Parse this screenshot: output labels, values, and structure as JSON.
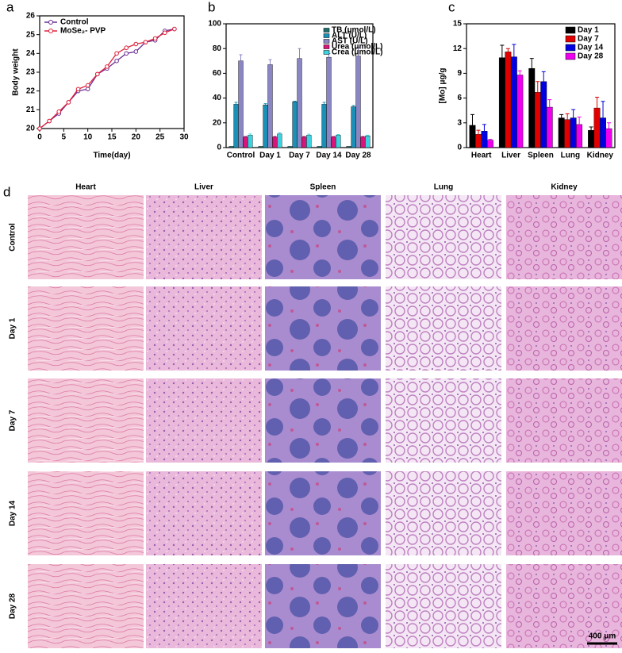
{
  "chart_data": [
    {
      "type": "line",
      "panel_label": "a",
      "x_label": "Time(day)",
      "y_label": "Body weight",
      "x": [
        0,
        2,
        4,
        6,
        8,
        10,
        12,
        14,
        16,
        18,
        20,
        22,
        24,
        26,
        28
      ],
      "xlim": [
        0,
        30
      ],
      "xticks": [
        0,
        5,
        10,
        15,
        20,
        25,
        30
      ],
      "ylim": [
        20,
        26
      ],
      "yticks": [
        20,
        21,
        22,
        23,
        24,
        25,
        26
      ],
      "legend": "upper left",
      "series": [
        {
          "name": "Control",
          "color": "#6a2c91",
          "values": [
            20.0,
            20.4,
            20.8,
            21.4,
            22.0,
            22.1,
            22.9,
            23.2,
            23.6,
            24.0,
            24.1,
            24.6,
            24.7,
            25.2,
            25.3
          ]
        },
        {
          "name": "MoSe₂- PVP",
          "color": "#e0203a",
          "values": [
            20.0,
            20.4,
            20.9,
            21.4,
            22.1,
            22.3,
            22.9,
            23.3,
            24.0,
            24.3,
            24.5,
            24.6,
            24.8,
            25.1,
            25.3
          ]
        }
      ]
    },
    {
      "type": "bar",
      "panel_label": "b",
      "categories": [
        "Control",
        "Day 1",
        "Day 7",
        "Day 14",
        "Day 28"
      ],
      "ylim": [
        0,
        100
      ],
      "yticks": [
        0,
        20,
        40,
        60,
        80,
        100
      ],
      "legend": "upper right",
      "series": [
        {
          "name": "TB (μmol/L)",
          "color": "#1f6e6e",
          "values": [
            1,
            1,
            1,
            1,
            1
          ]
        },
        {
          "name": "ALT (U/L)",
          "color": "#1b8fb5",
          "values": [
            35,
            34.5,
            37,
            35,
            33
          ],
          "errors": [
            1.5,
            1,
            0.5,
            1.5,
            1
          ]
        },
        {
          "name": "AST (U/L)",
          "color": "#8a86c4",
          "values": [
            70,
            67,
            72,
            73,
            74
          ],
          "errors": [
            5,
            4,
            8,
            3,
            7
          ]
        },
        {
          "name": "Urea (μmol/L)",
          "color": "#d8157a",
          "values": [
            8.5,
            8.5,
            8.5,
            8.5,
            8.5
          ],
          "errors": [
            0.5,
            0.5,
            0.5,
            0.5,
            0.5
          ]
        },
        {
          "name": "Crea (μmol/L)",
          "color": "#3cd2e0",
          "values": [
            10,
            11,
            10,
            10,
            9.5
          ],
          "errors": [
            1,
            1,
            0.8,
            0.6,
            0.5
          ]
        }
      ]
    },
    {
      "type": "bar",
      "panel_label": "c",
      "y_label": "[Mo]  μg/g",
      "categories": [
        "Heart",
        "Liver",
        "Spleen",
        "Lung",
        "Kidney"
      ],
      "ylim": [
        0,
        15
      ],
      "yticks": [
        0,
        3,
        6,
        9,
        12,
        15
      ],
      "legend": "upper right",
      "series": [
        {
          "name": "Day 1",
          "color": "#000000",
          "values": [
            2.7,
            10.9,
            9.6,
            3.6,
            2.1
          ],
          "errors": [
            1.3,
            1.5,
            1.2,
            0.4,
            0.4
          ]
        },
        {
          "name": "Day 7",
          "color": "#e00000",
          "values": [
            1.6,
            11.6,
            6.7,
            3.4,
            4.8
          ],
          "errors": [
            0.5,
            0.4,
            1.3,
            0.7,
            1.3
          ]
        },
        {
          "name": "Day 14",
          "color": "#0000e0",
          "values": [
            2.0,
            11.0,
            8.0,
            3.6,
            3.6
          ],
          "errors": [
            0.8,
            1.5,
            1.2,
            1.0,
            2.0
          ]
        },
        {
          "name": "Day 28",
          "color": "#ee00ee",
          "values": [
            0.9,
            8.8,
            4.9,
            2.8,
            2.3
          ],
          "errors": [
            0.1,
            0.5,
            0.9,
            0.9,
            0.7
          ]
        }
      ]
    }
  ],
  "histology": {
    "panel_label": "d",
    "columns": [
      "Heart",
      "Liver",
      "Spleen",
      "Lung",
      "Kidney"
    ],
    "rows": [
      "Control",
      "Day 1",
      "Day 7",
      "Day 14",
      "Day 28"
    ],
    "scale_bar": "400 μm"
  }
}
